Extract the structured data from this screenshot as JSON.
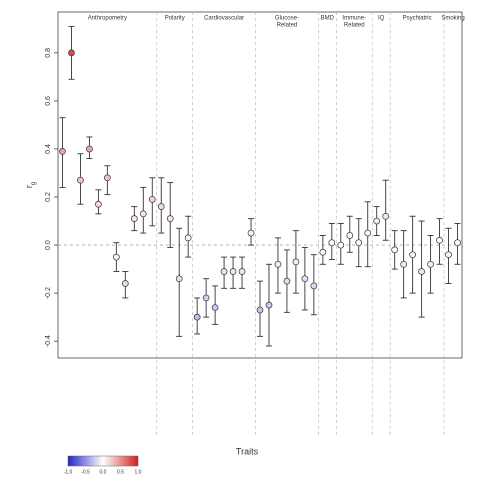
{
  "chart_data": {
    "type": "errorbar",
    "xlabel": "Traits",
    "ylabel": "r",
    "ylabel_sub": "g",
    "categories": [
      null,
      null,
      null,
      null,
      null,
      null,
      null,
      null,
      null,
      null,
      null,
      null,
      null,
      null,
      null,
      null,
      null,
      null,
      null,
      null,
      null,
      null,
      null,
      null,
      null,
      null,
      null,
      null,
      null,
      null,
      null,
      null,
      null,
      null,
      null,
      null,
      null,
      null,
      null,
      null,
      null,
      null,
      null,
      null,
      null
    ],
    "values": [
      0.39,
      0.8,
      0.27,
      0.4,
      0.17,
      0.28,
      -0.05,
      -0.16,
      0.11,
      0.13,
      0.19,
      0.16,
      0.11,
      -0.14,
      0.03,
      -0.3,
      -0.22,
      -0.26,
      -0.11,
      -0.11,
      -0.11,
      0.05,
      -0.27,
      -0.25,
      -0.08,
      -0.15,
      -0.07,
      -0.14,
      -0.17,
      -0.03,
      0.01,
      0.0,
      0.04,
      0.01,
      0.05,
      0.1,
      0.12,
      -0.02,
      -0.08,
      -0.04,
      -0.11,
      -0.08,
      0.02,
      -0.04,
      0.01
    ],
    "lower": [
      0.24,
      0.69,
      0.17,
      0.36,
      0.13,
      0.21,
      -0.11,
      -0.22,
      0.06,
      0.05,
      0.08,
      0.05,
      -0.01,
      -0.38,
      -0.05,
      -0.37,
      -0.3,
      -0.33,
      -0.18,
      -0.18,
      -0.18,
      0.0,
      -0.38,
      -0.42,
      -0.2,
      -0.28,
      -0.2,
      -0.27,
      -0.29,
      -0.08,
      -0.06,
      -0.08,
      -0.03,
      -0.09,
      -0.09,
      0.04,
      0.02,
      -0.1,
      -0.22,
      -0.2,
      -0.3,
      -0.2,
      -0.08,
      -0.16,
      -0.08
    ],
    "upper": [
      0.53,
      0.91,
      0.38,
      0.45,
      0.23,
      0.33,
      0.01,
      -0.11,
      0.16,
      0.24,
      0.28,
      0.28,
      0.26,
      0.07,
      0.12,
      -0.22,
      -0.14,
      -0.17,
      -0.05,
      -0.05,
      -0.05,
      0.11,
      -0.15,
      -0.08,
      0.03,
      -0.02,
      0.06,
      -0.01,
      -0.04,
      0.04,
      0.09,
      0.09,
      0.12,
      0.11,
      0.18,
      0.16,
      0.27,
      0.06,
      0.06,
      0.12,
      0.1,
      0.04,
      0.11,
      0.07,
      0.09
    ],
    "groups": [
      {
        "name": [
          "Anthropometry"
        ],
        "size": 11
      },
      {
        "name": [
          "Polarity"
        ],
        "size": 4
      },
      {
        "name": [
          "Cardiovascular"
        ],
        "size": 7
      },
      {
        "name": [
          "Glucose-",
          "Related"
        ],
        "size": 7
      },
      {
        "name": [
          "BMD"
        ],
        "size": 2
      },
      {
        "name": [
          "Immune-",
          "Related"
        ],
        "size": 4
      },
      {
        "name": [
          "IQ"
        ],
        "size": 2
      },
      {
        "name": [
          "Psychiatric"
        ],
        "size": 6
      },
      {
        "name": [
          "Smoking"
        ],
        "size": 2
      }
    ],
    "ylim": [
      -0.47,
      0.97
    ],
    "yticks": [
      -0.4,
      -0.2,
      {
        "value": 0,
        "label": "0.0"
      },
      0.2,
      0.4,
      0.6,
      0.8
    ],
    "reference_line": 0,
    "colorbar": {
      "lim": [
        -1,
        1
      ],
      "colors": [
        "#2323c8",
        "#ffffff",
        "#d21e1e"
      ],
      "ticks": [
        {
          "value": -1,
          "label": "-1.0"
        },
        {
          "value": -0.5,
          "label": "-0.5"
        },
        {
          "value": 0,
          "label": "0.0"
        },
        {
          "value": 0.5,
          "label": "0.5"
        },
        {
          "value": 1,
          "label": "1.0"
        }
      ]
    }
  }
}
